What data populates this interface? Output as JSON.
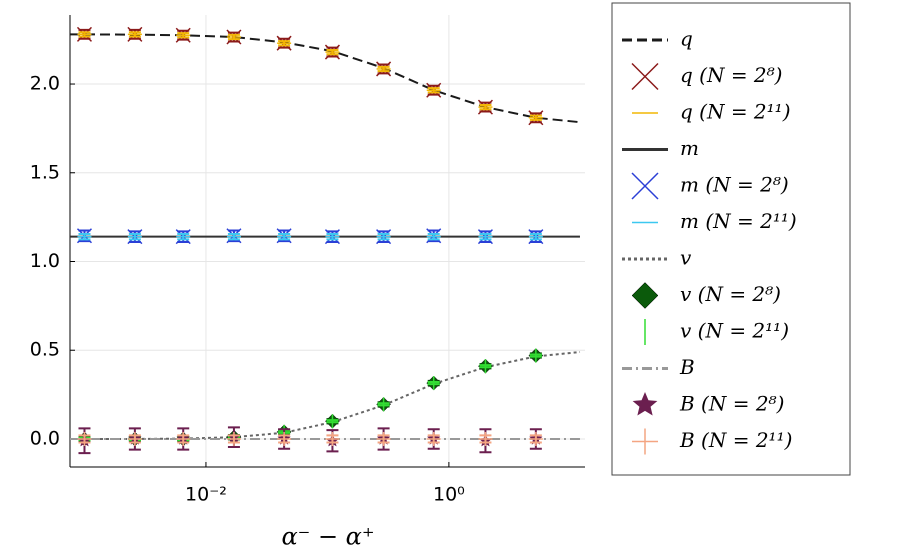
{
  "chart_data": {
    "type": "line",
    "xlabel": "α⁻ − α⁺",
    "xscale": "log",
    "xlim": [
      0.00076,
      13.2
    ],
    "ylim": [
      -0.158,
      2.389
    ],
    "xticks": [
      {
        "value": 0.01,
        "label": "10⁻²"
      },
      {
        "value": 1,
        "label": "10⁰"
      }
    ],
    "yticks": [
      {
        "value": 0,
        "label": "0.0"
      },
      0.5,
      {
        "value": 1,
        "label": "1.0"
      },
      1.5,
      {
        "value": 2,
        "label": "2.0"
      }
    ],
    "grid": true,
    "legend": "outside-right",
    "series": [
      {
        "name": "q",
        "color": "#1a1a1a",
        "dash": "dash",
        "marker": "none",
        "x": [
          0.00076,
          0.001,
          0.0026,
          0.0065,
          0.017,
          0.044,
          0.11,
          0.29,
          0.75,
          2.0,
          5.2,
          12
        ],
        "values": [
          2.28,
          2.28,
          2.278,
          2.275,
          2.265,
          2.235,
          2.185,
          2.09,
          1.965,
          1.87,
          1.81,
          1.785
        ]
      },
      {
        "name": "q (N = 2⁸)",
        "color": "#8b1a1a",
        "dash": "none",
        "marker": "x",
        "x": [
          0.001,
          0.0026,
          0.0065,
          0.017,
          0.044,
          0.11,
          0.29,
          0.75,
          2.0,
          5.2
        ],
        "values": [
          2.28,
          2.28,
          2.275,
          2.265,
          2.23,
          2.18,
          2.085,
          1.965,
          1.87,
          1.81
        ],
        "errors": [
          0.025,
          0.025,
          0.025,
          0.025,
          0.025,
          0.025,
          0.025,
          0.025,
          0.025,
          0.025
        ]
      },
      {
        "name": "q (N = 2¹¹)",
        "color": "#f2b705",
        "dash": "none",
        "marker": "hline",
        "x": [
          0.001,
          0.0026,
          0.0065,
          0.017,
          0.044,
          0.11,
          0.29,
          0.75,
          2.0,
          5.2
        ],
        "values": [
          2.28,
          2.28,
          2.275,
          2.265,
          2.23,
          2.18,
          2.085,
          1.965,
          1.87,
          1.81
        ],
        "errors": [
          0.012,
          0.012,
          0.012,
          0.012,
          0.012,
          0.012,
          0.012,
          0.012,
          0.012,
          0.012
        ]
      },
      {
        "name": "m",
        "color": "#333333",
        "dash": "solid",
        "marker": "none",
        "x": [
          0.00076,
          12
        ],
        "values": [
          1.14,
          1.14
        ]
      },
      {
        "name": "m (N = 2⁸)",
        "color": "#2b3fd6",
        "dash": "none",
        "marker": "x",
        "x": [
          0.001,
          0.0026,
          0.0065,
          0.017,
          0.044,
          0.11,
          0.29,
          0.75,
          2.0,
          5.2
        ],
        "values": [
          1.145,
          1.14,
          1.14,
          1.145,
          1.145,
          1.14,
          1.14,
          1.145,
          1.14,
          1.14
        ],
        "errors": [
          0.03,
          0.03,
          0.03,
          0.03,
          0.03,
          0.03,
          0.03,
          0.03,
          0.03,
          0.03
        ]
      },
      {
        "name": "m (N = 2¹¹)",
        "color": "#3cc8f0",
        "dash": "none",
        "marker": "hline",
        "x": [
          0.001,
          0.0026,
          0.0065,
          0.017,
          0.044,
          0.11,
          0.29,
          0.75,
          2.0,
          5.2
        ],
        "values": [
          1.14,
          1.14,
          1.14,
          1.14,
          1.14,
          1.14,
          1.14,
          1.14,
          1.14,
          1.14
        ],
        "errors": [
          0.015,
          0.015,
          0.015,
          0.015,
          0.015,
          0.015,
          0.015,
          0.015,
          0.015,
          0.015
        ]
      },
      {
        "name": "v",
        "color": "#666666",
        "dash": "dot",
        "marker": "none",
        "x": [
          0.00076,
          0.001,
          0.0026,
          0.0065,
          0.017,
          0.044,
          0.11,
          0.29,
          0.75,
          2.0,
          5.2,
          12
        ],
        "values": [
          0,
          0,
          0,
          0.002,
          0.01,
          0.035,
          0.095,
          0.19,
          0.31,
          0.405,
          0.465,
          0.49
        ]
      },
      {
        "name": "v (N = 2⁸)",
        "color": "#0b5a0b",
        "dash": "none",
        "marker": "diamond",
        "x": [
          0.001,
          0.0026,
          0.0065,
          0.017,
          0.044,
          0.11,
          0.29,
          0.75,
          2.0,
          5.2
        ],
        "values": [
          0,
          0,
          0,
          0.01,
          0.04,
          0.1,
          0.195,
          0.315,
          0.41,
          0.47
        ],
        "errors": [
          0.012,
          0.012,
          0.012,
          0.012,
          0.012,
          0.012,
          0.012,
          0.012,
          0.012,
          0.012
        ]
      },
      {
        "name": "v (N = 2¹¹)",
        "color": "#33dd33",
        "dash": "none",
        "marker": "vline",
        "x": [
          0.001,
          0.0026,
          0.0065,
          0.017,
          0.044,
          0.11,
          0.29,
          0.75,
          2.0,
          5.2
        ],
        "values": [
          0,
          0,
          0,
          0.01,
          0.04,
          0.1,
          0.195,
          0.315,
          0.41,
          0.47
        ],
        "errors": [
          0.006,
          0.006,
          0.006,
          0.006,
          0.006,
          0.006,
          0.006,
          0.006,
          0.006,
          0.006
        ]
      },
      {
        "name": "B",
        "color": "#999999",
        "dash": "dashdot",
        "marker": "none",
        "x": [
          0.00076,
          12
        ],
        "values": [
          0,
          0
        ]
      },
      {
        "name": "B (N = 2⁸)",
        "color": "#6b1f4f",
        "dash": "none",
        "marker": "star",
        "x": [
          0.001,
          0.0026,
          0.0065,
          0.017,
          0.044,
          0.11,
          0.29,
          0.75,
          2.0,
          5.2
        ],
        "values": [
          -0.01,
          0,
          0,
          0.01,
          0,
          -0.01,
          0,
          0,
          -0.01,
          0
        ],
        "errors": [
          0.07,
          0.06,
          0.06,
          0.055,
          0.055,
          0.06,
          0.06,
          0.055,
          0.065,
          0.055
        ]
      },
      {
        "name": "B (N = 2¹¹)",
        "color": "#f4a582",
        "dash": "none",
        "marker": "plus",
        "x": [
          0.001,
          0.0026,
          0.0065,
          0.017,
          0.044,
          0.11,
          0.29,
          0.75,
          2.0,
          5.2
        ],
        "values": [
          0,
          0,
          0,
          0,
          0,
          0,
          0,
          0,
          0,
          0
        ],
        "errors": [
          0.02,
          0.02,
          0.02,
          0.02,
          0.02,
          0.02,
          0.02,
          0.02,
          0.02,
          0.02
        ]
      }
    ]
  }
}
